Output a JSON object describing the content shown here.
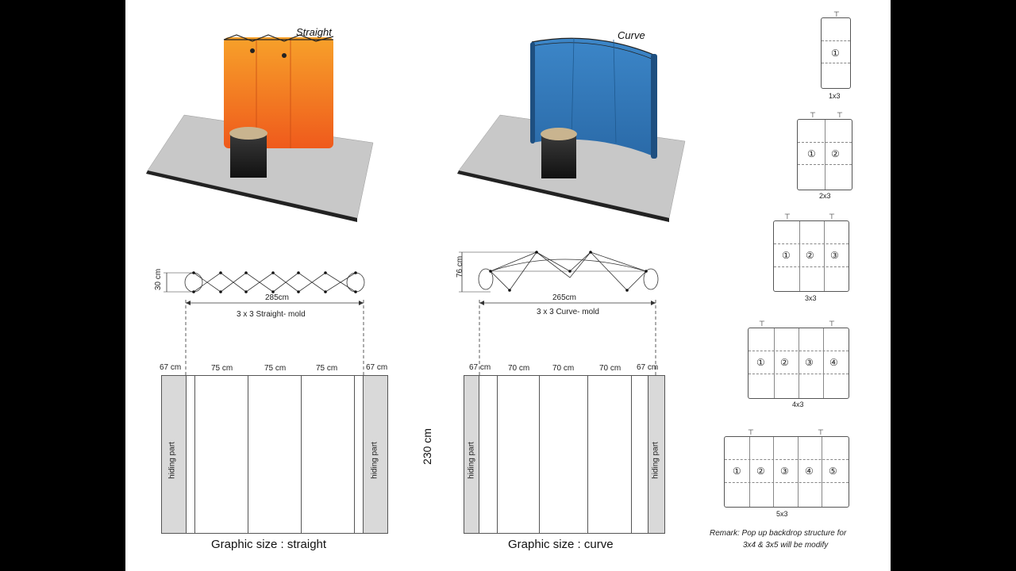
{
  "straight": {
    "title": "Straight",
    "depth_label": "30 cm",
    "width_label": "285cm",
    "mold_label": "3 x 3 Straight- mold",
    "dims": [
      "67 cm",
      "75 cm",
      "75 cm",
      "75 cm",
      "67 cm"
    ],
    "hiding_left": "hiding part",
    "hiding_right": "hiding part",
    "caption": "Graphic size : straight",
    "colors": {
      "panel_top": "#f7a12a",
      "panel_bottom": "#ef5a1c"
    }
  },
  "curve": {
    "title": "Curve",
    "depth_label": "76 cm",
    "width_label": "265cm",
    "mold_label": "3 x 3 Curve- mold",
    "dims": [
      "67 cm",
      "70 cm",
      "70 cm",
      "70 cm",
      "67 cm"
    ],
    "hiding_left": "hiding part",
    "hiding_right": "hiding part",
    "caption": "Graphic size : curve",
    "colors": {
      "panel_top": "#3c86c8",
      "panel_bottom": "#2a6aa8"
    }
  },
  "height_label": "230 cm",
  "configs": [
    {
      "name": "1x3",
      "numbers": [
        "①"
      ]
    },
    {
      "name": "2x3",
      "numbers": [
        "①",
        "②"
      ]
    },
    {
      "name": "3x3",
      "numbers": [
        "①",
        "②",
        "③"
      ]
    },
    {
      "name": "4x3",
      "numbers": [
        "①",
        "②",
        "③",
        "④"
      ]
    },
    {
      "name": "5x3",
      "numbers": [
        "①",
        "②",
        "③",
        "④",
        "⑤"
      ]
    }
  ],
  "remark": {
    "line1": "Remark: Pop up backdrop structure for",
    "line2": "3x4 & 3x5 will be modify"
  }
}
